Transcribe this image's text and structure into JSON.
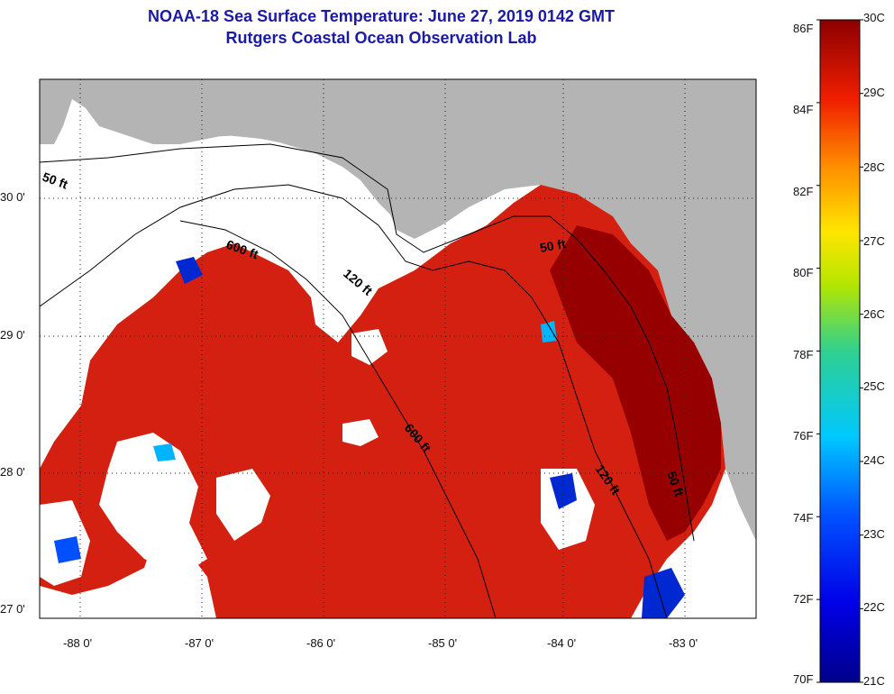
{
  "title": {
    "line1": "NOAA-18 Sea Surface Temperature:  June 27, 2019 0142 GMT",
    "line2": "Rutgers Coastal Ocean Observation Lab"
  },
  "map": {
    "lat_labels": [
      "30 0'",
      "29 0'",
      "28 0'",
      "27 0'"
    ],
    "lon_labels": [
      "-88 0'",
      "-87 0'",
      "-86 0'",
      "-85 0'",
      "-84 0'",
      "-83 0'"
    ],
    "contour_labels": [
      "50 ft",
      "600 ft",
      "120 ft",
      "50 ft",
      "600 ft",
      "120 ft",
      "50 ft"
    ]
  },
  "colorbar": {
    "f_labels": [
      "86F",
      "84F",
      "82F",
      "80F",
      "78F",
      "76F",
      "74F",
      "72F",
      "70F"
    ],
    "c_labels": [
      "30C",
      "29C",
      "28C",
      "27C",
      "26C",
      "25C",
      "24C",
      "23C",
      "22C",
      "21C"
    ]
  },
  "colors": {
    "land": "#b4b4b4",
    "cloud": "#ffffff",
    "warm_water": "#d42010",
    "hot_water": "#960000",
    "title_text": "#1a1aa6"
  }
}
